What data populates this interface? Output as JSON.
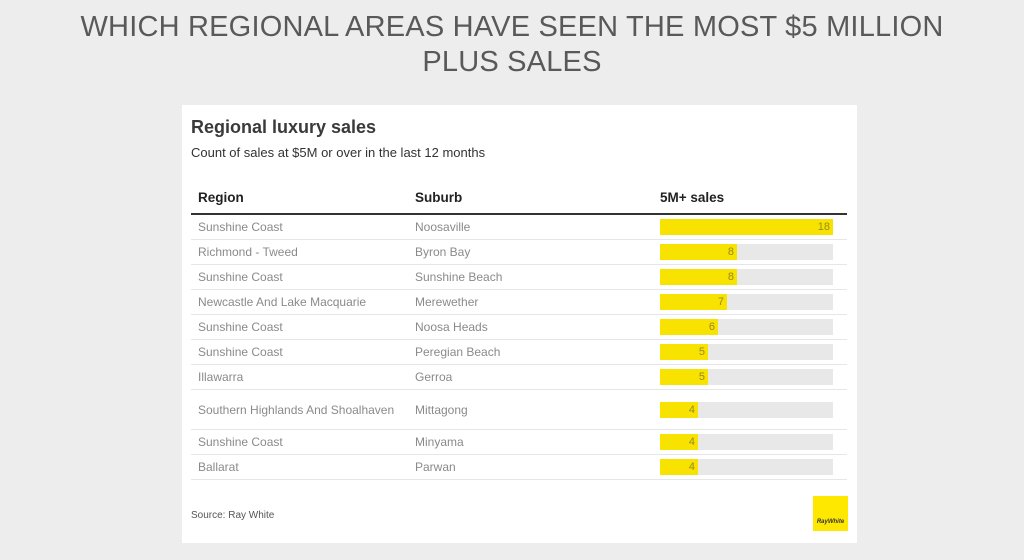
{
  "slide_title": "WHICH REGIONAL AREAS HAVE SEEN THE MOST $5 MILLION PLUS SALES",
  "colors": {
    "bar": "#f7e200",
    "track": "#e8e8e8",
    "logo": "#ffe800"
  },
  "chart_data": {
    "type": "table",
    "title": "Regional luxury sales",
    "subtitle": "Count of sales at $5M or over in the last 12 months",
    "columns": [
      "Region",
      "Suburb",
      "5M+ sales"
    ],
    "xlim": [
      0,
      18
    ],
    "rows": [
      {
        "region": "Sunshine Coast",
        "suburb": "Noosaville",
        "value": 18
      },
      {
        "region": "Richmond - Tweed",
        "suburb": "Byron Bay",
        "value": 8
      },
      {
        "region": "Sunshine Coast",
        "suburb": "Sunshine Beach",
        "value": 8
      },
      {
        "region": "Newcastle And Lake Macquarie",
        "suburb": "Merewether",
        "value": 7
      },
      {
        "region": "Sunshine Coast",
        "suburb": "Noosa Heads",
        "value": 6
      },
      {
        "region": "Sunshine Coast",
        "suburb": "Peregian Beach",
        "value": 5
      },
      {
        "region": "Illawarra",
        "suburb": "Gerroa",
        "value": 5
      },
      {
        "region": "Southern Highlands And Shoalhaven",
        "suburb": "Mittagong",
        "value": 4
      },
      {
        "region": "Sunshine Coast",
        "suburb": "Minyama",
        "value": 4
      },
      {
        "region": "Ballarat",
        "suburb": "Parwan",
        "value": 4
      }
    ],
    "source": "Source: Ray White"
  },
  "logo_text": "RayWhite"
}
